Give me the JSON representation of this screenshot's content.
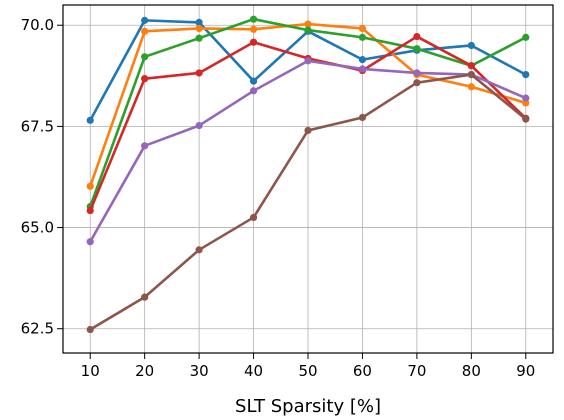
{
  "chart_data": {
    "type": "line",
    "title": "",
    "xlabel": "SLT Sparsity [%]",
    "ylabel": "",
    "x": [
      10,
      20,
      30,
      40,
      50,
      60,
      70,
      80,
      90
    ],
    "xlim": [
      5,
      95
    ],
    "ylim": [
      61.9,
      70.5
    ],
    "xticks": [
      10,
      20,
      30,
      40,
      50,
      60,
      70,
      80,
      90
    ],
    "yticks": [
      62.5,
      65.0,
      67.5,
      70.0
    ],
    "ytick_labels": [
      "62.5",
      "65.0",
      "67.5",
      "70.0"
    ],
    "grid": true,
    "legend": "none",
    "series": [
      {
        "color": "#1f77b4",
        "values": [
          67.65,
          70.12,
          70.07,
          68.62,
          69.85,
          69.15,
          69.38,
          69.5,
          68.78
        ]
      },
      {
        "color": "#ff7f0e",
        "values": [
          66.02,
          69.85,
          69.92,
          69.9,
          70.03,
          69.92,
          68.78,
          68.48,
          68.08
        ]
      },
      {
        "color": "#2ca02c",
        "values": [
          65.52,
          69.22,
          69.68,
          70.15,
          69.88,
          69.7,
          69.42,
          69.0,
          69.7
        ]
      },
      {
        "color": "#d62728",
        "values": [
          65.42,
          68.68,
          68.82,
          69.58,
          69.18,
          68.88,
          69.72,
          69.0,
          67.7
        ]
      },
      {
        "color": "#9467bd",
        "values": [
          64.65,
          67.02,
          67.52,
          68.38,
          69.12,
          68.92,
          68.82,
          68.78,
          68.2
        ]
      },
      {
        "color": "#8c564b",
        "values": [
          62.48,
          63.28,
          64.45,
          65.25,
          67.4,
          67.72,
          68.58,
          68.78,
          67.68
        ]
      }
    ]
  }
}
